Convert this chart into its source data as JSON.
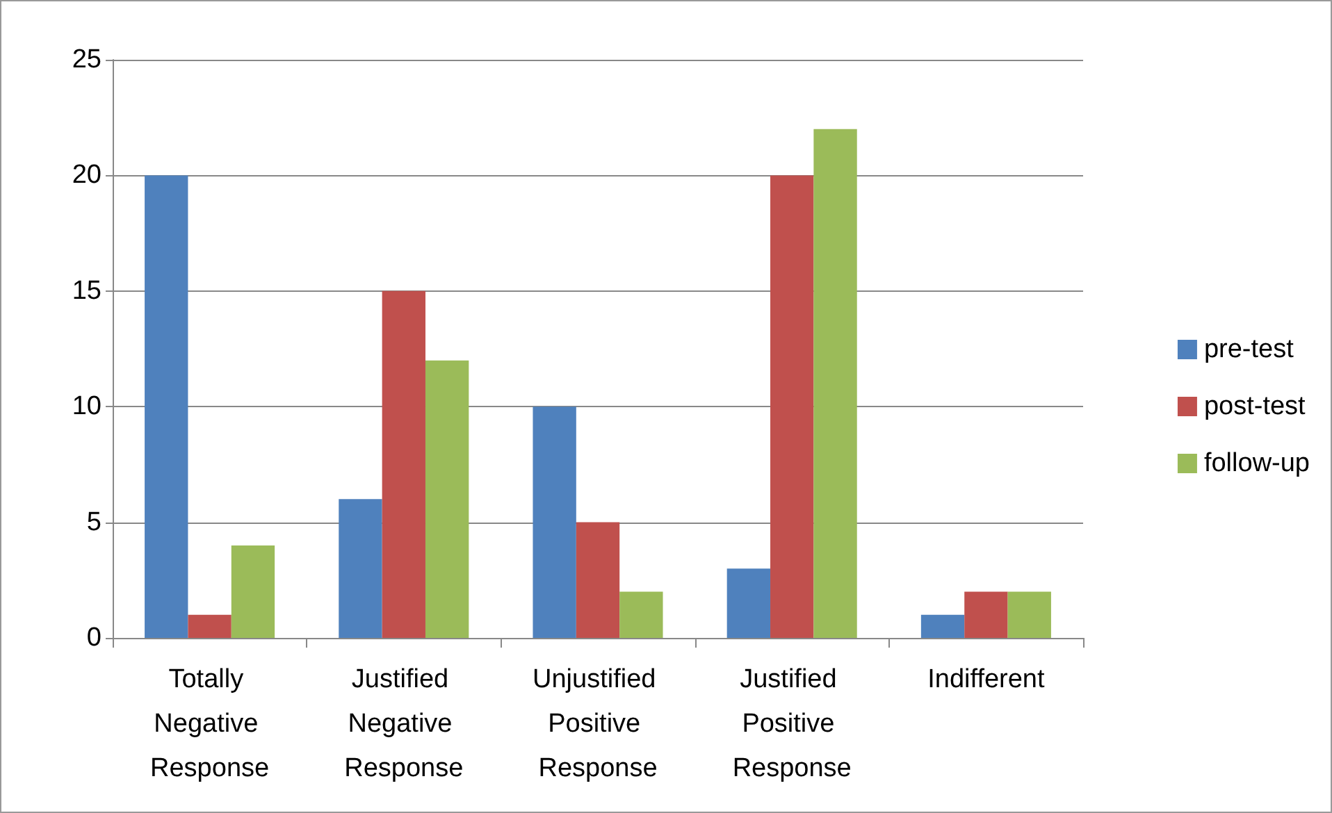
{
  "chart_data": {
    "type": "bar",
    "categories": [
      "Totally Negative Response",
      "Justified Negative Response",
      "Unjustified Positive Response",
      "Justified Positive Response",
      "Indifferent"
    ],
    "series": [
      {
        "name": "pre-test",
        "color": "#4f81bd",
        "values": [
          20,
          6,
          10,
          3,
          1
        ]
      },
      {
        "name": "post-test",
        "color": "#c0504d",
        "values": [
          1,
          15,
          5,
          20,
          2
        ]
      },
      {
        "name": "follow-up",
        "color": "#9bbb59",
        "values": [
          4,
          12,
          2,
          22,
          2
        ]
      }
    ],
    "ylim": [
      0,
      25
    ],
    "yticks": [
      0,
      5,
      10,
      15,
      20,
      25
    ],
    "grid": "y",
    "legend": "right"
  }
}
